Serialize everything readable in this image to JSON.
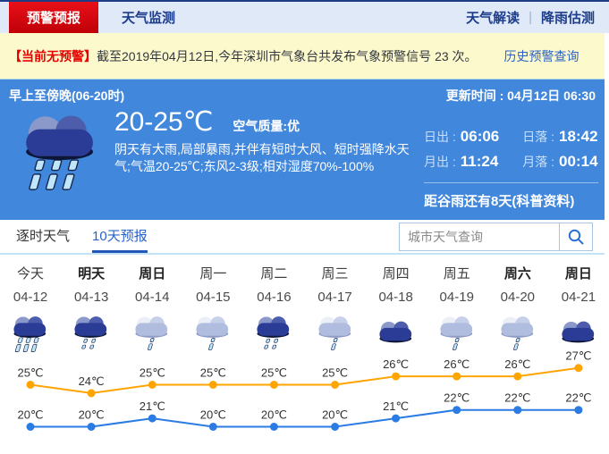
{
  "nav": {
    "tabs": [
      {
        "label": "预警预报",
        "active": true
      },
      {
        "label": "天气监测",
        "active": false
      }
    ],
    "links": [
      {
        "label": "天气解读"
      },
      {
        "label": "降雨估测"
      }
    ],
    "separator": "|"
  },
  "alert": {
    "prefix": "【当前无预警】",
    "text": "截至2019年04月12日,今年深圳市气象台共发布气象预警信号 23 次。",
    "history_link": "历史预警查询"
  },
  "current": {
    "period": "早上至傍晚(06-20时)",
    "updated": "更新时间 : 04月12日 06:30",
    "icon": "heavy-rain",
    "temp_range": "20-25℃",
    "air_quality": "空气质量:优",
    "description": "阴天有大雨,局部暴雨,并伴有短时大风、短时强降水天气;气温20-25℃;东风2-3级;相对湿度70%-100%",
    "astro": [
      {
        "label": "日出 :",
        "value": "06:06"
      },
      {
        "label": "日落 :",
        "value": "18:42"
      },
      {
        "label": "月出 :",
        "value": "11:24"
      },
      {
        "label": "月落 :",
        "value": "00:14"
      }
    ],
    "solar_term": "距谷雨还有8天(科普资料)"
  },
  "tabs": {
    "hourly": "逐时天气",
    "ten_day": "10天预报"
  },
  "search": {
    "placeholder": "城市天气查询",
    "icon": "magnifier-icon"
  },
  "forecast": {
    "days": [
      {
        "label": "今天",
        "date": "04-12",
        "icon": "heavy-rain",
        "weekend": false
      },
      {
        "label": "明天",
        "date": "04-13",
        "icon": "moderate-rain",
        "weekend": true
      },
      {
        "label": "周日",
        "date": "04-14",
        "icon": "light-rain",
        "weekend": true
      },
      {
        "label": "周一",
        "date": "04-15",
        "icon": "light-rain",
        "weekend": false
      },
      {
        "label": "周二",
        "date": "04-16",
        "icon": "moderate-rain",
        "weekend": false
      },
      {
        "label": "周三",
        "date": "04-17",
        "icon": "light-rain",
        "weekend": false
      },
      {
        "label": "周四",
        "date": "04-18",
        "icon": "overcast",
        "weekend": false
      },
      {
        "label": "周五",
        "date": "04-19",
        "icon": "light-rain",
        "weekend": false
      },
      {
        "label": "周六",
        "date": "04-20",
        "icon": "light-rain",
        "weekend": true
      },
      {
        "label": "周日",
        "date": "04-21",
        "icon": "overcast",
        "weekend": true
      }
    ]
  },
  "chart_data": {
    "type": "line",
    "categories": [
      "04-12",
      "04-13",
      "04-14",
      "04-15",
      "04-16",
      "04-17",
      "04-18",
      "04-19",
      "04-20",
      "04-21"
    ],
    "series": [
      {
        "name": "high",
        "color": "#ffa400",
        "values": [
          25,
          24,
          25,
          25,
          25,
          25,
          26,
          26,
          26,
          27
        ]
      },
      {
        "name": "low",
        "color": "#2b7be4",
        "values": [
          20,
          20,
          21,
          20,
          20,
          20,
          21,
          22,
          22,
          22
        ]
      }
    ],
    "unit": "℃",
    "label_suffix": "℃",
    "ylim": [
      18,
      29
    ],
    "grid": false,
    "legend": "none"
  },
  "colors": {
    "accent_red": "#d8000f",
    "panel_blue": "#4187dc",
    "link_blue": "#2a62c8",
    "alert_bg": "#fcf9cc",
    "high_line": "#ffa400",
    "low_line": "#2b7be4"
  }
}
